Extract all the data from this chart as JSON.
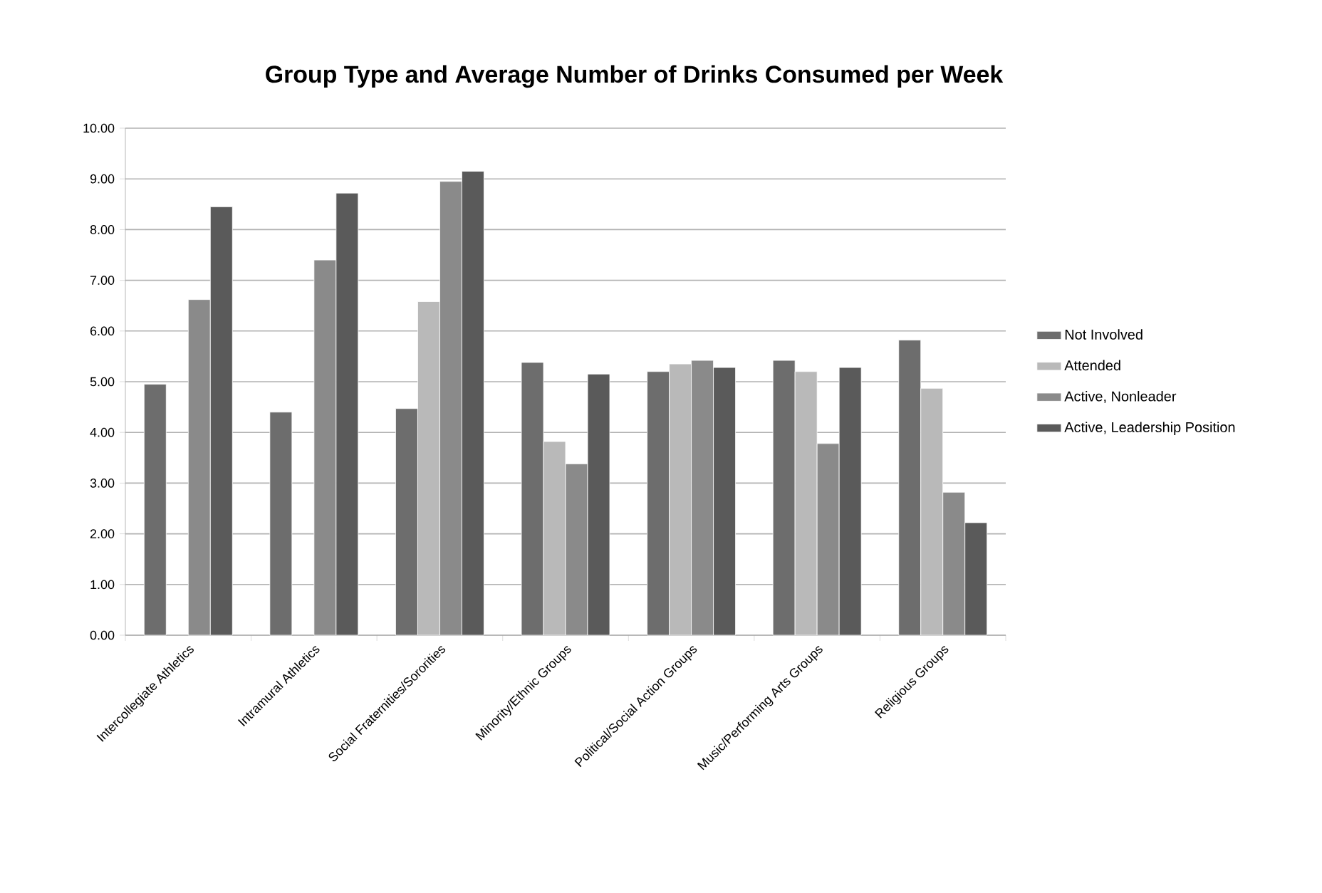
{
  "chart_data": {
    "type": "bar",
    "title": "Group Type and Average Number of Drinks Consumed per Week",
    "categories": [
      "Intercollegiate Athletics",
      "Intramural Athletics",
      "Social Fraternities/Sororities",
      "Minority/Ethnic Groups",
      "Political/Social Action Groups",
      "Music/Performing Arts Groups",
      "Religious Groups"
    ],
    "series": [
      {
        "name": "Not Involved",
        "color": "#6d6d6d",
        "values": [
          4.95,
          4.4,
          4.47,
          5.38,
          5.2,
          5.42,
          5.82
        ]
      },
      {
        "name": "Attended",
        "color": "#b9b9b9",
        "values": [
          null,
          null,
          6.58,
          3.82,
          5.35,
          5.2,
          4.87
        ]
      },
      {
        "name": "Active, Nonleader",
        "color": "#8a8a8a",
        "values": [
          6.62,
          7.4,
          8.95,
          3.38,
          5.42,
          3.78,
          2.82
        ]
      },
      {
        "name": "Active, Leadership Position",
        "color": "#5a5a5a",
        "values": [
          8.45,
          8.72,
          9.15,
          5.15,
          5.28,
          5.28,
          2.22
        ]
      }
    ],
    "ylim": [
      0,
      10
    ],
    "yticks": [
      {
        "value": 0,
        "label": "0.00"
      },
      {
        "value": 1,
        "label": "1.00"
      },
      {
        "value": 2,
        "label": "2.00"
      },
      {
        "value": 3,
        "label": "3.00"
      },
      {
        "value": 4,
        "label": "4.00"
      },
      {
        "value": 5,
        "label": "5.00"
      },
      {
        "value": 6,
        "label": "6.00"
      },
      {
        "value": 7,
        "label": "7.00"
      },
      {
        "value": 8,
        "label": "8.00"
      },
      {
        "value": 9,
        "label": "9.00"
      },
      {
        "value": 10,
        "label": "10.00"
      }
    ],
    "grid": "y",
    "legend": "right"
  }
}
